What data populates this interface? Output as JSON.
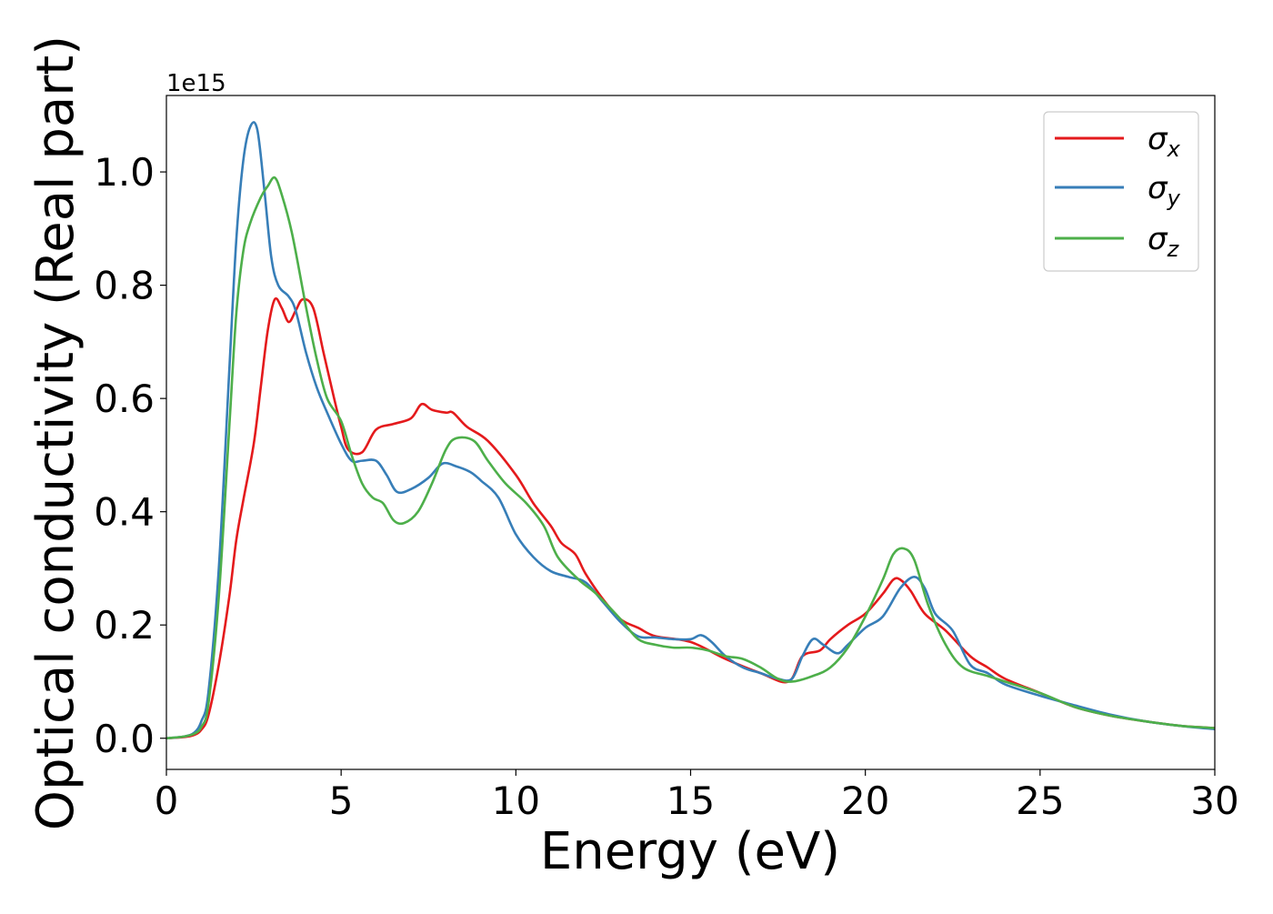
{
  "chart_data": {
    "type": "line",
    "title": "",
    "xlabel": "Energy (eV)",
    "ylabel": "Optical conductivity (Real part)",
    "y_offset_text": "1e15",
    "y_scale": 1000000000000000.0,
    "xlim": [
      0,
      30
    ],
    "ylim": [
      -0.055,
      1.135
    ],
    "x_ticks": [
      0,
      5,
      10,
      15,
      20,
      25,
      30
    ],
    "y_ticks": [
      0.0,
      0.2,
      0.4,
      0.6,
      0.8,
      1.0
    ],
    "x_tick_labels": [
      "0",
      "5",
      "10",
      "15",
      "20",
      "25",
      "30"
    ],
    "y_tick_labels": [
      "0.0",
      "0.2",
      "0.4",
      "0.6",
      "0.8",
      "1.0"
    ],
    "grid": false,
    "legend_position": "top-right",
    "series": [
      {
        "name": "σ_x",
        "legend_main": "σ",
        "legend_sub": "x",
        "color": "#e41a1c",
        "points": [
          [
            0,
            0
          ],
          [
            0.5,
            0.002
          ],
          [
            0.8,
            0.006
          ],
          [
            1.0,
            0.015
          ],
          [
            1.2,
            0.04
          ],
          [
            1.5,
            0.13
          ],
          [
            1.8,
            0.25
          ],
          [
            2.0,
            0.35
          ],
          [
            2.2,
            0.42
          ],
          [
            2.5,
            0.52
          ],
          [
            2.7,
            0.62
          ],
          [
            2.9,
            0.72
          ],
          [
            3.1,
            0.775
          ],
          [
            3.3,
            0.76
          ],
          [
            3.5,
            0.735
          ],
          [
            3.7,
            0.755
          ],
          [
            3.9,
            0.775
          ],
          [
            4.2,
            0.76
          ],
          [
            4.5,
            0.68
          ],
          [
            4.8,
            0.6
          ],
          [
            5.0,
            0.55
          ],
          [
            5.2,
            0.51
          ],
          [
            5.6,
            0.505
          ],
          [
            6.0,
            0.545
          ],
          [
            6.5,
            0.555
          ],
          [
            7.0,
            0.565
          ],
          [
            7.3,
            0.59
          ],
          [
            7.6,
            0.58
          ],
          [
            8.0,
            0.575
          ],
          [
            8.2,
            0.575
          ],
          [
            8.6,
            0.55
          ],
          [
            9.2,
            0.525
          ],
          [
            10.0,
            0.465
          ],
          [
            10.5,
            0.415
          ],
          [
            11.0,
            0.375
          ],
          [
            11.3,
            0.345
          ],
          [
            11.7,
            0.325
          ],
          [
            12.0,
            0.29
          ],
          [
            12.5,
            0.245
          ],
          [
            13.0,
            0.21
          ],
          [
            13.5,
            0.195
          ],
          [
            14.0,
            0.18
          ],
          [
            15.0,
            0.17
          ],
          [
            16.0,
            0.14
          ],
          [
            17.0,
            0.115
          ],
          [
            17.8,
            0.1
          ],
          [
            18.2,
            0.145
          ],
          [
            18.7,
            0.155
          ],
          [
            19.0,
            0.175
          ],
          [
            19.5,
            0.2
          ],
          [
            20.0,
            0.22
          ],
          [
            20.5,
            0.255
          ],
          [
            20.8,
            0.28
          ],
          [
            21.0,
            0.28
          ],
          [
            21.3,
            0.26
          ],
          [
            21.7,
            0.22
          ],
          [
            22.3,
            0.19
          ],
          [
            23.0,
            0.145
          ],
          [
            23.5,
            0.125
          ],
          [
            24.0,
            0.105
          ],
          [
            25.0,
            0.08
          ],
          [
            26.0,
            0.055
          ],
          [
            27.0,
            0.04
          ],
          [
            28.0,
            0.03
          ],
          [
            29.0,
            0.022
          ],
          [
            30.0,
            0.018
          ]
        ]
      },
      {
        "name": "σ_y",
        "legend_main": "σ",
        "legend_sub": "y",
        "color": "#377eb8",
        "points": [
          [
            0,
            0
          ],
          [
            0.5,
            0.003
          ],
          [
            0.8,
            0.01
          ],
          [
            1.0,
            0.03
          ],
          [
            1.2,
            0.08
          ],
          [
            1.5,
            0.3
          ],
          [
            1.8,
            0.65
          ],
          [
            2.0,
            0.88
          ],
          [
            2.2,
            1.02
          ],
          [
            2.4,
            1.08
          ],
          [
            2.6,
            1.075
          ],
          [
            2.8,
            0.97
          ],
          [
            3.0,
            0.85
          ],
          [
            3.2,
            0.8
          ],
          [
            3.5,
            0.78
          ],
          [
            3.7,
            0.755
          ],
          [
            4.0,
            0.68
          ],
          [
            4.3,
            0.62
          ],
          [
            4.6,
            0.575
          ],
          [
            5.0,
            0.52
          ],
          [
            5.3,
            0.49
          ],
          [
            5.6,
            0.49
          ],
          [
            6.0,
            0.49
          ],
          [
            6.3,
            0.465
          ],
          [
            6.6,
            0.435
          ],
          [
            7.0,
            0.44
          ],
          [
            7.5,
            0.46
          ],
          [
            7.9,
            0.485
          ],
          [
            8.3,
            0.48
          ],
          [
            8.7,
            0.47
          ],
          [
            9.0,
            0.455
          ],
          [
            9.5,
            0.425
          ],
          [
            10.0,
            0.36
          ],
          [
            10.5,
            0.32
          ],
          [
            11.0,
            0.295
          ],
          [
            11.5,
            0.285
          ],
          [
            12.0,
            0.275
          ],
          [
            12.5,
            0.24
          ],
          [
            13.0,
            0.205
          ],
          [
            13.5,
            0.18
          ],
          [
            14.0,
            0.178
          ],
          [
            14.5,
            0.175
          ],
          [
            15.0,
            0.175
          ],
          [
            15.3,
            0.182
          ],
          [
            15.6,
            0.17
          ],
          [
            16.0,
            0.145
          ],
          [
            16.5,
            0.125
          ],
          [
            17.0,
            0.115
          ],
          [
            17.5,
            0.105
          ],
          [
            17.9,
            0.105
          ],
          [
            18.2,
            0.145
          ],
          [
            18.5,
            0.175
          ],
          [
            18.8,
            0.165
          ],
          [
            19.2,
            0.15
          ],
          [
            19.5,
            0.165
          ],
          [
            20.0,
            0.195
          ],
          [
            20.5,
            0.215
          ],
          [
            21.0,
            0.265
          ],
          [
            21.4,
            0.285
          ],
          [
            21.7,
            0.265
          ],
          [
            22.0,
            0.22
          ],
          [
            22.5,
            0.19
          ],
          [
            23.0,
            0.13
          ],
          [
            23.5,
            0.115
          ],
          [
            24.0,
            0.095
          ],
          [
            25.0,
            0.075
          ],
          [
            26.0,
            0.058
          ],
          [
            27.0,
            0.042
          ],
          [
            28.0,
            0.03
          ],
          [
            29.0,
            0.022
          ],
          [
            30.0,
            0.016
          ]
        ]
      },
      {
        "name": "σ_z",
        "legend_main": "σ",
        "legend_sub": "z",
        "color": "#4daf4a",
        "points": [
          [
            0,
            0
          ],
          [
            0.5,
            0.003
          ],
          [
            0.8,
            0.008
          ],
          [
            1.0,
            0.02
          ],
          [
            1.2,
            0.06
          ],
          [
            1.5,
            0.25
          ],
          [
            1.8,
            0.55
          ],
          [
            2.0,
            0.75
          ],
          [
            2.2,
            0.86
          ],
          [
            2.4,
            0.91
          ],
          [
            2.7,
            0.955
          ],
          [
            2.9,
            0.975
          ],
          [
            3.1,
            0.99
          ],
          [
            3.3,
            0.96
          ],
          [
            3.6,
            0.89
          ],
          [
            4.0,
            0.76
          ],
          [
            4.3,
            0.67
          ],
          [
            4.6,
            0.6
          ],
          [
            5.0,
            0.56
          ],
          [
            5.3,
            0.5
          ],
          [
            5.6,
            0.45
          ],
          [
            5.9,
            0.425
          ],
          [
            6.2,
            0.415
          ],
          [
            6.5,
            0.385
          ],
          [
            6.8,
            0.38
          ],
          [
            7.2,
            0.4
          ],
          [
            7.6,
            0.45
          ],
          [
            8.0,
            0.51
          ],
          [
            8.3,
            0.53
          ],
          [
            8.8,
            0.525
          ],
          [
            9.2,
            0.49
          ],
          [
            9.7,
            0.45
          ],
          [
            10.3,
            0.415
          ],
          [
            10.8,
            0.375
          ],
          [
            11.2,
            0.32
          ],
          [
            11.8,
            0.28
          ],
          [
            12.3,
            0.255
          ],
          [
            13.0,
            0.21
          ],
          [
            13.5,
            0.175
          ],
          [
            14.0,
            0.165
          ],
          [
            14.5,
            0.16
          ],
          [
            15.0,
            0.16
          ],
          [
            15.5,
            0.155
          ],
          [
            16.0,
            0.145
          ],
          [
            16.5,
            0.14
          ],
          [
            17.0,
            0.125
          ],
          [
            17.5,
            0.105
          ],
          [
            17.9,
            0.1
          ],
          [
            18.5,
            0.11
          ],
          [
            19.0,
            0.125
          ],
          [
            19.5,
            0.16
          ],
          [
            20.0,
            0.215
          ],
          [
            20.5,
            0.28
          ],
          [
            20.8,
            0.325
          ],
          [
            21.1,
            0.335
          ],
          [
            21.4,
            0.315
          ],
          [
            21.8,
            0.235
          ],
          [
            22.3,
            0.165
          ],
          [
            22.8,
            0.125
          ],
          [
            23.5,
            0.11
          ],
          [
            24.0,
            0.1
          ],
          [
            25.0,
            0.08
          ],
          [
            26.0,
            0.055
          ],
          [
            27.0,
            0.04
          ],
          [
            28.0,
            0.03
          ],
          [
            29.0,
            0.022
          ],
          [
            30.0,
            0.018
          ]
        ]
      }
    ]
  }
}
